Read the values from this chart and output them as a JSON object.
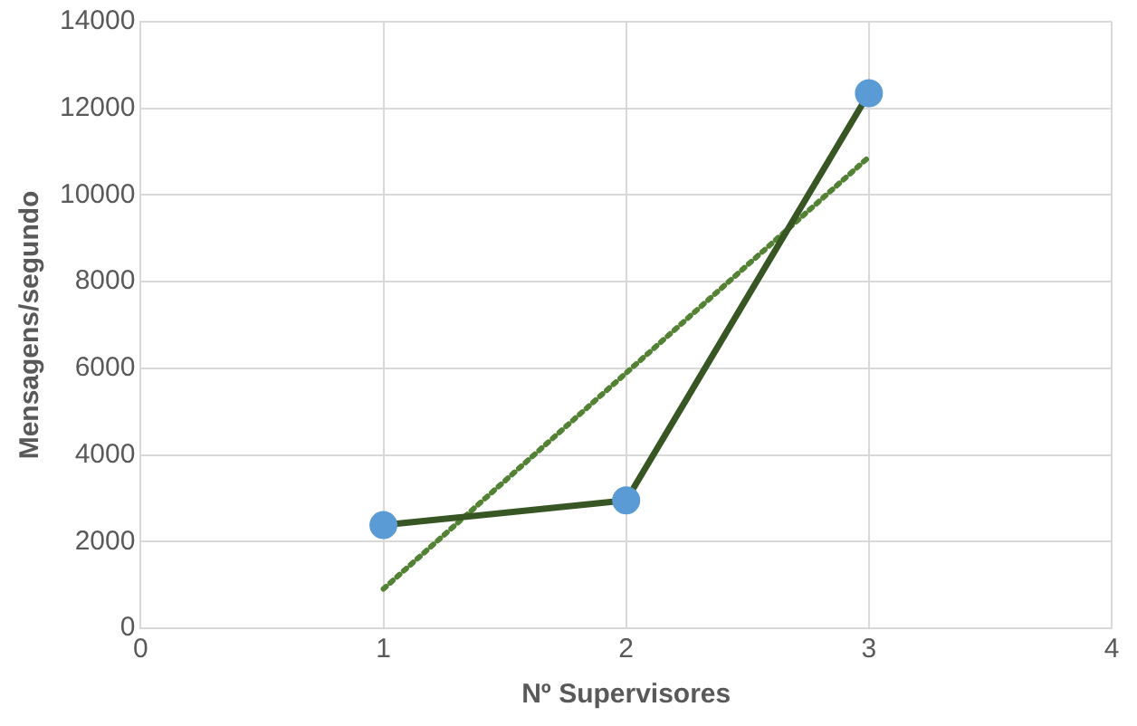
{
  "chart_data": {
    "type": "line",
    "xlabel": "Nº Supervisores",
    "ylabel": "Mensagens/segundo",
    "xlim": [
      0,
      4
    ],
    "xticks": [
      0,
      1,
      2,
      3,
      4
    ],
    "ylim": [
      0,
      14000
    ],
    "yticks": [
      0,
      2000,
      4000,
      6000,
      8000,
      10000,
      12000,
      14000
    ],
    "grid": true,
    "legend": false,
    "marker": "circle",
    "line_style": "solid",
    "series": [
      {
        "x": [
          1,
          2,
          3
        ],
        "values": [
          2380,
          2950,
          12350
        ],
        "color": "#375623",
        "colors": [
          "#5b9bd5",
          "#5b9bd5",
          "#5b9bd5"
        ]
      },
      {
        "type": "line",
        "x": [
          1,
          3
        ],
        "values": [
          908,
          10878
        ],
        "color": "#548235",
        "marker": "none",
        "line_style": "dotted"
      }
    ]
  }
}
